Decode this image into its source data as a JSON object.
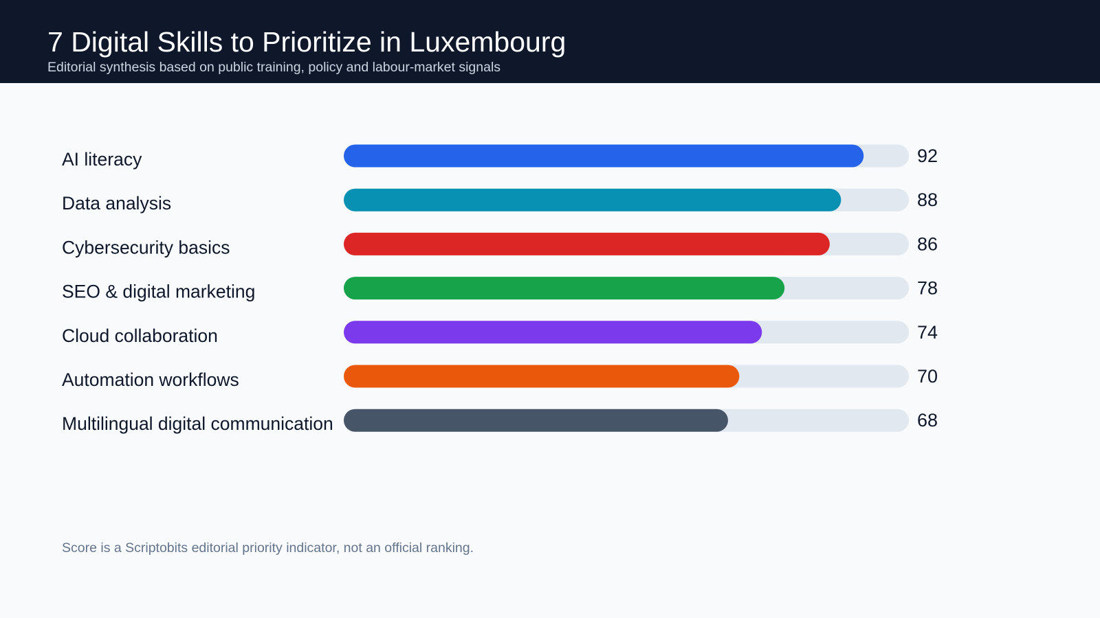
{
  "header": {
    "title": "7 Digital Skills to Prioritize in Luxembourg",
    "subtitle": "Editorial synthesis based on public training, policy and labour-market signals"
  },
  "footnote": "Score is a Scriptobits editorial priority indicator, not an official ranking.",
  "colors": {
    "header_bg": "#0f172a",
    "page_bg": "#f8fafc",
    "track": "#e2e8f0",
    "label_text": "#0f172a",
    "footnote_text": "#64748b"
  },
  "chart_data": {
    "type": "bar",
    "orientation": "horizontal",
    "categories": [
      "AI literacy",
      "Data analysis",
      "Cybersecurity basics",
      "SEO & digital marketing",
      "Cloud collaboration",
      "Automation workflows",
      "Multilingual digital communication"
    ],
    "values": [
      92,
      88,
      86,
      78,
      74,
      70,
      68
    ],
    "bar_colors": [
      "#2563eb",
      "#0891b2",
      "#dc2626",
      "#16a34a",
      "#7c3aed",
      "#ea580c",
      "#475569"
    ],
    "xlim": [
      0,
      100
    ],
    "value_labels": true,
    "grid": false,
    "legend": "none"
  }
}
